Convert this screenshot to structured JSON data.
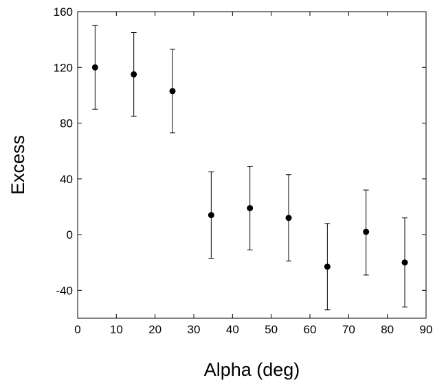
{
  "chart_data": {
    "type": "scatter",
    "title": "",
    "xlabel": "Alpha (deg)",
    "ylabel": "Excess",
    "xlim": [
      0,
      90
    ],
    "ylim": [
      -60,
      160
    ],
    "xticks": [
      0,
      10,
      20,
      30,
      40,
      50,
      60,
      70,
      80,
      90
    ],
    "xtick_labels": [
      "0",
      "10",
      "20",
      "30",
      "40",
      "50",
      "60",
      "70",
      "80",
      "90"
    ],
    "yticks": [
      -40,
      0,
      40,
      80,
      120,
      160
    ],
    "ytick_labels": [
      "-40",
      "0",
      "40",
      "80",
      "120",
      "160"
    ],
    "grid": false,
    "legend": "none",
    "series": [
      {
        "marker": "filled-circle",
        "color": "#000000",
        "x": [
          4.5,
          14.5,
          24.5,
          34.5,
          44.5,
          54.5,
          64.5,
          74.5,
          84.5
        ],
        "y": [
          120,
          115,
          103,
          14,
          19,
          12,
          -23,
          2,
          -20
        ],
        "error_low": [
          30,
          30,
          30,
          31,
          30,
          31,
          31,
          31,
          32
        ],
        "error_high": [
          30,
          30,
          30,
          31,
          30,
          31,
          31,
          30,
          32
        ]
      }
    ]
  }
}
